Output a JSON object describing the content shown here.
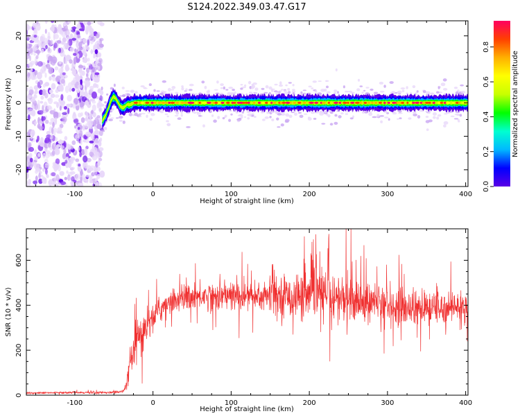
{
  "title": "S124.2022.349.03.47.G17",
  "colors": {
    "snr_line": "#f03030",
    "colormap": [
      "#ffffff",
      "#e8d8fa",
      "#c9a6f2",
      "#8a3cf0",
      "#5a00e6",
      "#0000ff",
      "#00b8ff",
      "#00ffd0",
      "#00ff00",
      "#c8ff00",
      "#ffff00",
      "#ffb000",
      "#ff4000",
      "#ff0060"
    ]
  },
  "chart_data": [
    {
      "type": "heatmap",
      "xlabel": "Height of straight line (km)",
      "ylabel": "Frequency (Hz)",
      "xlim": [
        -162,
        403
      ],
      "ylim": [
        -25,
        24.5
      ],
      "xticks": [
        -100,
        0,
        100,
        200,
        300,
        400
      ],
      "xtick_labels": [
        "-100",
        "0",
        "100",
        "200",
        "300",
        "400"
      ],
      "yticks": [
        -20,
        -10,
        0,
        10,
        20
      ],
      "ytick_labels": [
        "-20",
        "-10",
        "0",
        "10",
        "20"
      ],
      "ridge": {
        "x": [
          -65,
          -60,
          -57,
          -54,
          -51,
          -48,
          -45,
          -42,
          -39,
          -36,
          -33,
          -30,
          -27,
          -24,
          -20,
          -10,
          0,
          50,
          100,
          150,
          200,
          250,
          300,
          350,
          400
        ],
        "y": [
          -5.5,
          -3.5,
          -1.5,
          0.5,
          1.8,
          1.5,
          0.2,
          -1.0,
          -1.5,
          -1.2,
          -0.4,
          -0.6,
          -0.3,
          0,
          0,
          0,
          0,
          0,
          0,
          0,
          0,
          0,
          0,
          0,
          0
        ]
      },
      "noise_region_x": [
        -162,
        -65
      ],
      "colorbar": {
        "label": "Normalized spectral amplitude",
        "range": [
          0,
          0.95
        ],
        "ticks": [
          0.0,
          0.2,
          0.4,
          0.6,
          0.8
        ],
        "tick_labels": [
          "0.0",
          "0.2",
          "0.4",
          "0.6",
          "0.8"
        ]
      }
    },
    {
      "type": "line",
      "xlabel": "Height of straight line (km)",
      "ylabel": "SNR (10 * v/v)",
      "xlim": [
        -162,
        403
      ],
      "ylim": [
        0,
        740
      ],
      "xticks": [
        -100,
        0,
        100,
        200,
        300,
        400
      ],
      "xtick_labels": [
        "-100",
        "0",
        "100",
        "200",
        "300",
        "400"
      ],
      "yticks": [
        0,
        200,
        400,
        600
      ],
      "ytick_labels": [
        "0",
        "200",
        "400",
        "600"
      ],
      "series": [
        {
          "x": [
            -162,
            -140,
            -100,
            -60,
            -40,
            -35,
            -30,
            -25,
            -20,
            -15,
            -10,
            -5,
            0,
            5,
            10,
            15,
            20,
            30,
            40,
            60,
            80,
            100,
            120,
            140,
            160,
            180,
            200,
            210,
            220,
            240,
            260,
            280,
            300,
            320,
            340,
            360,
            380,
            400,
            403
          ],
          "values": [
            10,
            10,
            12,
            12,
            15,
            30,
            120,
            190,
            230,
            270,
            300,
            330,
            345,
            370,
            385,
            400,
            410,
            425,
            435,
            440,
            445,
            440,
            440,
            440,
            445,
            440,
            435,
            460,
            440,
            430,
            420,
            410,
            405,
            395,
            385,
            385,
            395,
            395,
            390
          ],
          "spread": [
            4,
            4,
            4,
            4,
            6,
            15,
            50,
            70,
            90,
            90,
            80,
            70,
            60,
            55,
            55,
            55,
            50,
            50,
            50,
            55,
            60,
            65,
            70,
            75,
            80,
            90,
            110,
            120,
            110,
            100,
            90,
            85,
            80,
            80,
            75,
            70,
            65,
            60,
            60
          ]
        }
      ]
    }
  ]
}
